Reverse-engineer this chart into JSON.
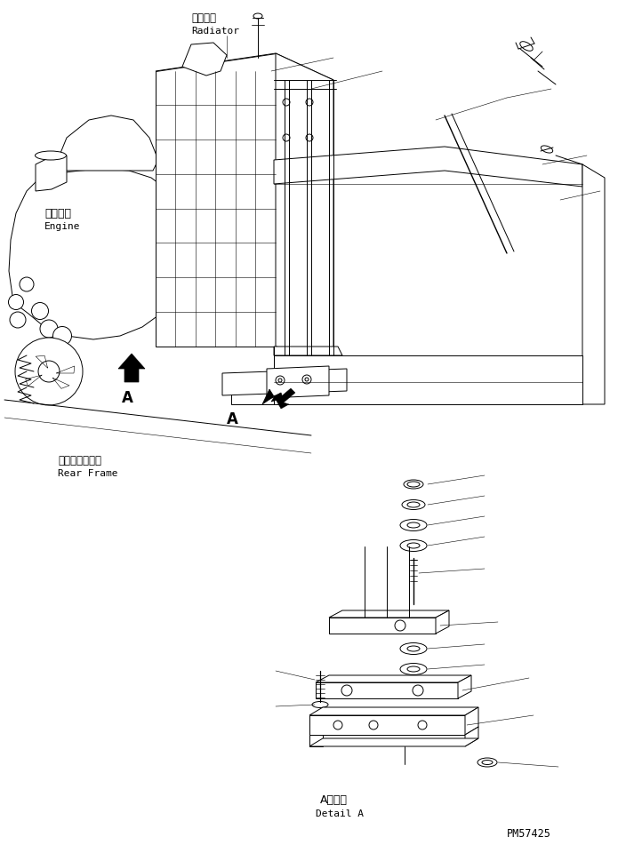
{
  "bg_color": "#ffffff",
  "fig_width": 6.95,
  "fig_height": 9.51,
  "dpi": 100,
  "title_code": "PM57425",
  "label_radiator_jp": "ラジエタ",
  "label_radiator_en": "Radiator",
  "label_engine_jp": "エンジン",
  "label_engine_en": "Engine",
  "label_rear_frame_jp": "リヤーフレーム",
  "label_rear_frame_en": "Rear Frame",
  "label_detail_jp": "A　詳細",
  "label_detail_en": "Detail A",
  "arrow_A_label": "A",
  "line_color": "#000000",
  "lw_main": 0.7,
  "lw_thin": 0.4
}
